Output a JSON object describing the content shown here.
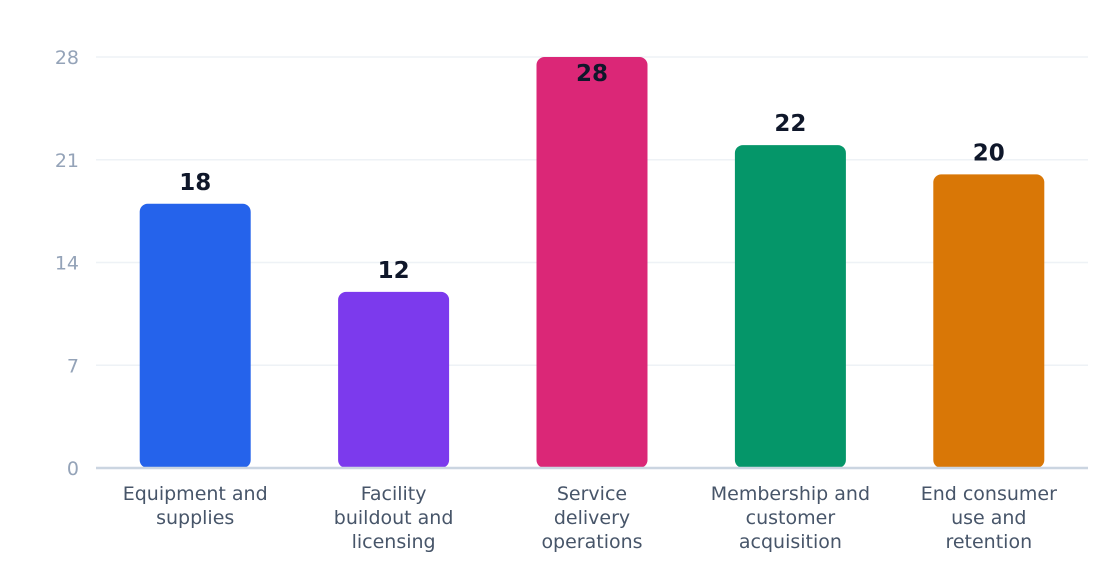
{
  "chart_data": {
    "type": "bar",
    "categories": [
      [
        "Equipment and",
        "supplies"
      ],
      [
        "Facility",
        "buildout and",
        "licensing"
      ],
      [
        "Service",
        "delivery",
        "operations"
      ],
      [
        "Membership and",
        "customer",
        "acquisition"
      ],
      [
        "End consumer",
        "use and",
        "retention"
      ]
    ],
    "values": [
      18,
      12,
      28,
      22,
      20
    ],
    "value_labels": [
      "18",
      "12",
      "28",
      "22",
      "20"
    ],
    "colors": [
      "#2563eb",
      "#7c3aed",
      "#db2777",
      "#059669",
      "#d97706"
    ],
    "ylim": [
      0,
      28
    ],
    "yticks": [
      0,
      7,
      14,
      21,
      28
    ],
    "ytick_labels": [
      "0",
      "7",
      "14",
      "21",
      "28"
    ],
    "grid": true,
    "title": "",
    "xlabel": "",
    "ylabel": ""
  }
}
